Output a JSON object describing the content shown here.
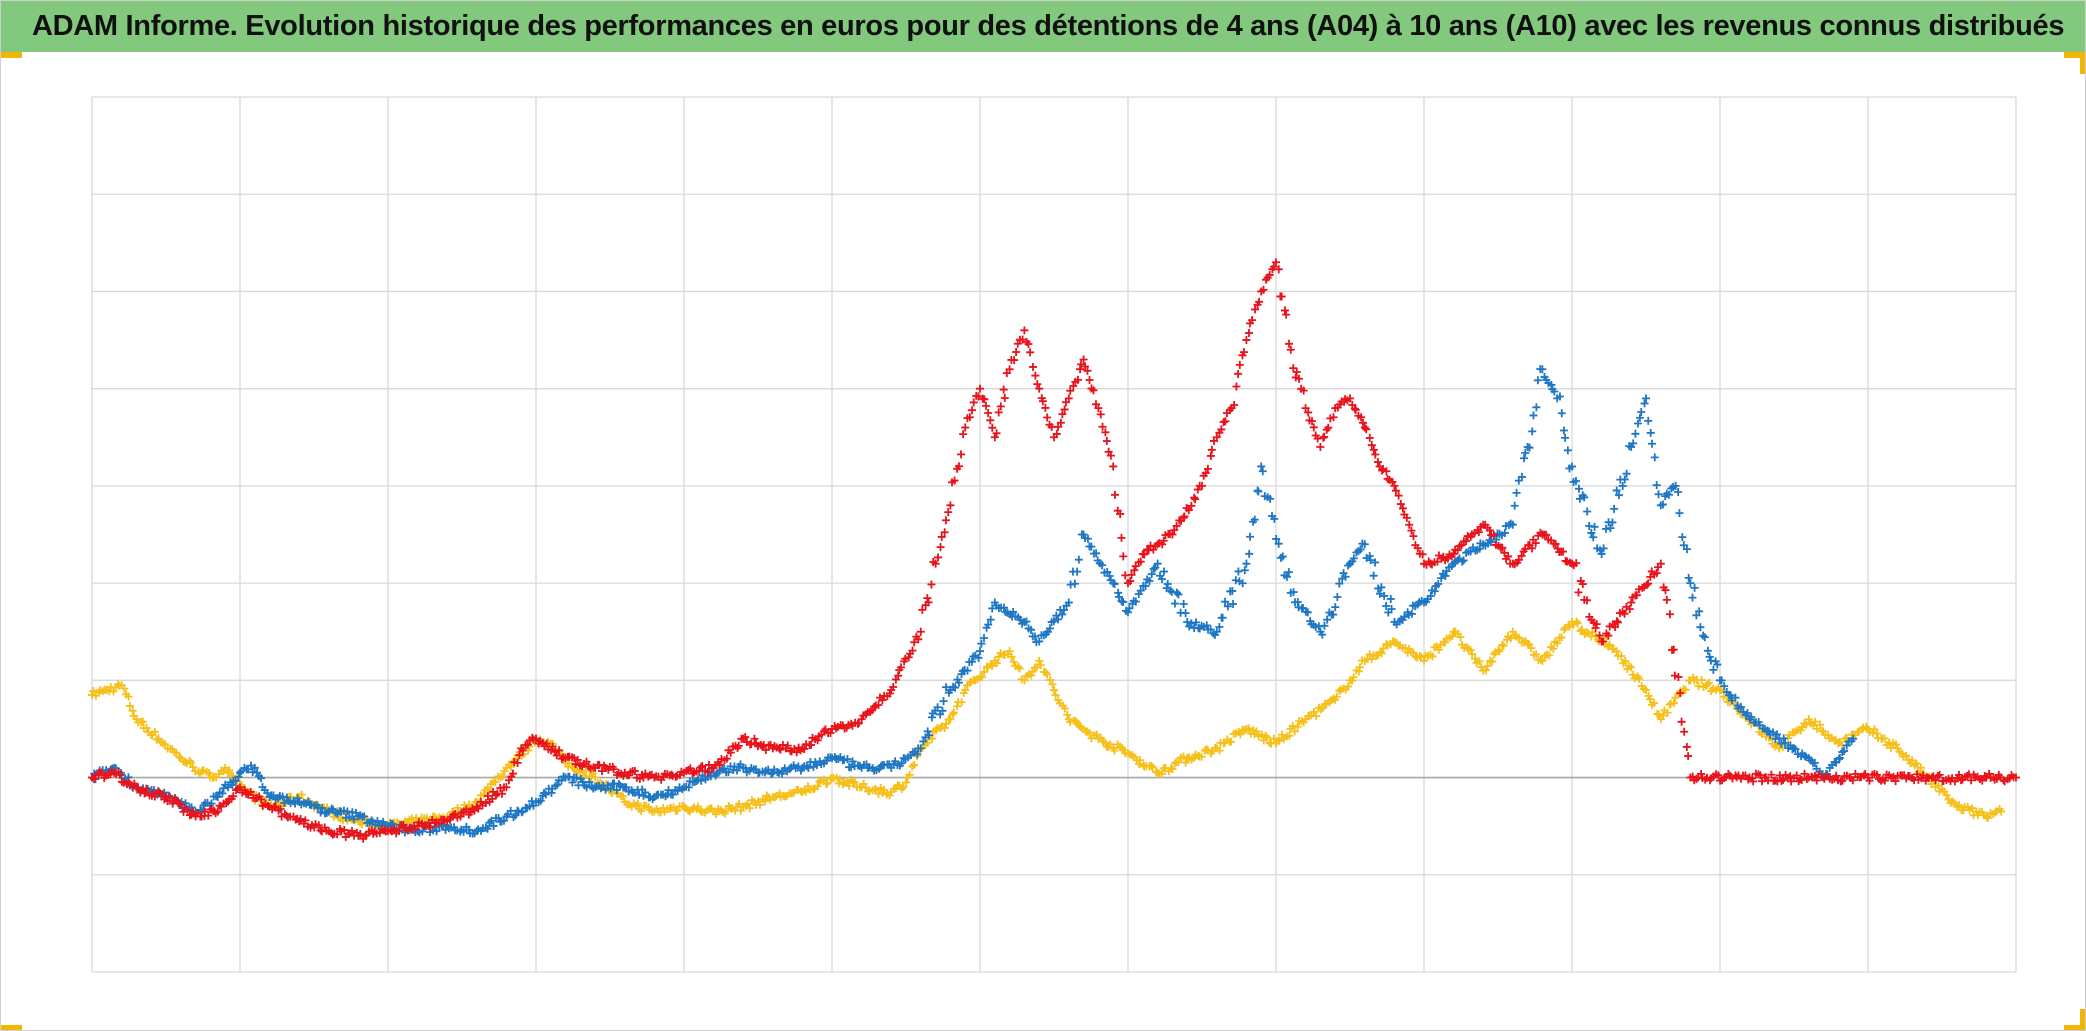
{
  "header": {
    "title": "ADAM Informe. Evolution historique des performances en euros pour des détentions de 4 ans (A04) à 10 ans (A10) avec les revenus connus distribués"
  },
  "colors": {
    "title_bg": "#82c97e",
    "accent_corners": "#f2b705",
    "series_red": "#e8131b",
    "series_blue": "#1f77c4",
    "series_yellow": "#f5c01a",
    "grid": "#d9d9d9",
    "zero_line": "#a6a6a6"
  },
  "chart_data": {
    "type": "scatter",
    "title": "ADAM Informe. Evolution historique des performances en euros pour des détentions de 4 ans (A04) à 10 ans (A10) avec les revenus connus distribués",
    "marker": "plus",
    "grid": true,
    "legend": "none",
    "axis_labels_visible": false,
    "x_range": [
      0,
      13
    ],
    "y_range": [
      -2,
      7
    ],
    "zero_line_y": 0,
    "series": [
      {
        "color": "#f5c01a",
        "points": [
          [
            0,
            0.85
          ],
          [
            0.1,
            0.9
          ],
          [
            0.2,
            0.95
          ],
          [
            0.3,
            0.6
          ],
          [
            0.45,
            0.4
          ],
          [
            0.6,
            0.2
          ],
          [
            0.8,
            0
          ],
          [
            0.9,
            0.1
          ],
          [
            1,
            -0.1
          ],
          [
            1.2,
            -0.3
          ],
          [
            1.4,
            -0.2
          ],
          [
            1.6,
            -0.35
          ],
          [
            1.8,
            -0.45
          ],
          [
            2,
            -0.5
          ],
          [
            2.2,
            -0.45
          ],
          [
            2.4,
            -0.4
          ],
          [
            2.6,
            -0.25
          ],
          [
            2.8,
            0.1
          ],
          [
            3,
            0.4
          ],
          [
            3.1,
            0.35
          ],
          [
            3.2,
            0.15
          ],
          [
            3.4,
            0
          ],
          [
            3.6,
            -0.25
          ],
          [
            3.8,
            -0.35
          ],
          [
            4,
            -0.3
          ],
          [
            4.2,
            -0.35
          ],
          [
            4.4,
            -0.3
          ],
          [
            4.6,
            -0.2
          ],
          [
            4.8,
            -0.15
          ],
          [
            5,
            0
          ],
          [
            5.2,
            -0.1
          ],
          [
            5.4,
            -0.15
          ],
          [
            5.5,
            -0.05
          ],
          [
            5.6,
            0.3
          ],
          [
            5.8,
            0.6
          ],
          [
            5.9,
            0.9
          ],
          [
            6.1,
            1.2
          ],
          [
            6.2,
            1.3
          ],
          [
            6.3,
            1.0
          ],
          [
            6.4,
            1.2
          ],
          [
            6.5,
            0.9
          ],
          [
            6.6,
            0.6
          ],
          [
            6.8,
            0.4
          ],
          [
            7,
            0.25
          ],
          [
            7.2,
            0.05
          ],
          [
            7.4,
            0.2
          ],
          [
            7.6,
            0.3
          ],
          [
            7.8,
            0.5
          ],
          [
            8.0,
            0.35
          ],
          [
            8.2,
            0.6
          ],
          [
            8.4,
            0.8
          ],
          [
            8.5,
            1.0
          ],
          [
            8.6,
            1.2
          ],
          [
            8.8,
            1.4
          ],
          [
            9.0,
            1.2
          ],
          [
            9.2,
            1.5
          ],
          [
            9.4,
            1.1
          ],
          [
            9.6,
            1.5
          ],
          [
            9.8,
            1.2
          ],
          [
            10,
            1.6
          ],
          [
            10.3,
            1.3
          ],
          [
            10.5,
            0.9
          ],
          [
            10.6,
            0.6
          ],
          [
            10.8,
            1.0
          ],
          [
            11,
            0.9
          ],
          [
            11.2,
            0.6
          ],
          [
            11.4,
            0.3
          ],
          [
            11.6,
            0.6
          ],
          [
            11.8,
            0.35
          ],
          [
            12,
            0.5
          ],
          [
            12.2,
            0.3
          ],
          [
            12.4,
            0.0
          ],
          [
            12.6,
            -0.3
          ],
          [
            12.8,
            -0.4
          ],
          [
            12.9,
            -0.35
          ]
        ]
      },
      {
        "color": "#1f77c4",
        "points": [
          [
            0,
            0
          ],
          [
            0.15,
            0.1
          ],
          [
            0.3,
            -0.1
          ],
          [
            0.5,
            -0.2
          ],
          [
            0.7,
            -0.35
          ],
          [
            0.85,
            -0.2
          ],
          [
            1,
            0.05
          ],
          [
            1.1,
            0.1
          ],
          [
            1.2,
            -0.2
          ],
          [
            1.4,
            -0.25
          ],
          [
            1.6,
            -0.35
          ],
          [
            1.8,
            -0.4
          ],
          [
            2,
            -0.5
          ],
          [
            2.2,
            -0.55
          ],
          [
            2.4,
            -0.5
          ],
          [
            2.6,
            -0.55
          ],
          [
            2.8,
            -0.4
          ],
          [
            3,
            -0.25
          ],
          [
            3.2,
            0
          ],
          [
            3.4,
            -0.1
          ],
          [
            3.6,
            -0.1
          ],
          [
            3.8,
            -0.2
          ],
          [
            4,
            -0.1
          ],
          [
            4.2,
            0.05
          ],
          [
            4.4,
            0.1
          ],
          [
            4.6,
            0.05
          ],
          [
            4.8,
            0.1
          ],
          [
            5,
            0.2
          ],
          [
            5.2,
            0.1
          ],
          [
            5.4,
            0.1
          ],
          [
            5.6,
            0.3
          ],
          [
            5.8,
            0.9
          ],
          [
            6,
            1.3
          ],
          [
            6.1,
            1.8
          ],
          [
            6.3,
            1.6
          ],
          [
            6.4,
            1.4
          ],
          [
            6.6,
            1.8
          ],
          [
            6.7,
            2.5
          ],
          [
            6.9,
            2.0
          ],
          [
            7.0,
            1.7
          ],
          [
            7.2,
            2.2
          ],
          [
            7.4,
            1.6
          ],
          [
            7.6,
            1.5
          ],
          [
            7.8,
            2.2
          ],
          [
            7.9,
            3.2
          ],
          [
            8.1,
            1.9
          ],
          [
            8.3,
            1.5
          ],
          [
            8.5,
            2.2
          ],
          [
            8.6,
            2.4
          ],
          [
            8.8,
            1.6
          ],
          [
            9.0,
            1.8
          ],
          [
            9.2,
            2.2
          ],
          [
            9.4,
            2.4
          ],
          [
            9.6,
            2.6
          ],
          [
            9.7,
            3.4
          ],
          [
            9.8,
            4.2
          ],
          [
            9.9,
            3.9
          ],
          [
            10.0,
            3.2
          ],
          [
            10.2,
            2.3
          ],
          [
            10.4,
            3.4
          ],
          [
            10.5,
            3.9
          ],
          [
            10.6,
            2.8
          ],
          [
            10.7,
            3.0
          ],
          [
            10.8,
            2.0
          ],
          [
            11.0,
            1.0
          ],
          [
            11.2,
            0.6
          ],
          [
            11.4,
            0.4
          ],
          [
            11.6,
            0.2
          ],
          [
            11.7,
            0.0
          ],
          [
            11.9,
            0.4
          ]
        ]
      },
      {
        "color": "#e8131b",
        "points": [
          [
            0,
            0
          ],
          [
            0.15,
            0.05
          ],
          [
            0.3,
            -0.1
          ],
          [
            0.5,
            -0.2
          ],
          [
            0.7,
            -0.4
          ],
          [
            0.85,
            -0.35
          ],
          [
            1,
            -0.1
          ],
          [
            1.2,
            -0.3
          ],
          [
            1.4,
            -0.45
          ],
          [
            1.6,
            -0.55
          ],
          [
            1.8,
            -0.6
          ],
          [
            2,
            -0.55
          ],
          [
            2.2,
            -0.5
          ],
          [
            2.4,
            -0.45
          ],
          [
            2.6,
            -0.3
          ],
          [
            2.8,
            -0.1
          ],
          [
            2.9,
            0.3
          ],
          [
            3.0,
            0.4
          ],
          [
            3.2,
            0.2
          ],
          [
            3.4,
            0.1
          ],
          [
            3.6,
            0.05
          ],
          [
            3.8,
            0.0
          ],
          [
            4,
            0.05
          ],
          [
            4.2,
            0.1
          ],
          [
            4.4,
            0.4
          ],
          [
            4.6,
            0.3
          ],
          [
            4.8,
            0.3
          ],
          [
            5,
            0.5
          ],
          [
            5.2,
            0.6
          ],
          [
            5.4,
            0.9
          ],
          [
            5.6,
            1.5
          ],
          [
            5.7,
            2.2
          ],
          [
            5.8,
            2.8
          ],
          [
            5.9,
            3.6
          ],
          [
            6.0,
            4.0
          ],
          [
            6.1,
            3.5
          ],
          [
            6.2,
            4.2
          ],
          [
            6.3,
            4.6
          ],
          [
            6.4,
            4.0
          ],
          [
            6.5,
            3.5
          ],
          [
            6.6,
            3.9
          ],
          [
            6.7,
            4.3
          ],
          [
            6.8,
            3.8
          ],
          [
            6.9,
            3.2
          ],
          [
            7.0,
            2.0
          ],
          [
            7.1,
            2.3
          ],
          [
            7.2,
            2.4
          ],
          [
            7.3,
            2.5
          ],
          [
            7.5,
            3.0
          ],
          [
            7.6,
            3.5
          ],
          [
            7.7,
            3.8
          ],
          [
            7.8,
            4.5
          ],
          [
            7.9,
            5.0
          ],
          [
            8.0,
            5.3
          ],
          [
            8.1,
            4.4
          ],
          [
            8.2,
            3.8
          ],
          [
            8.3,
            3.4
          ],
          [
            8.4,
            3.8
          ],
          [
            8.5,
            3.9
          ],
          [
            8.6,
            3.6
          ],
          [
            8.7,
            3.2
          ],
          [
            8.8,
            3.0
          ],
          [
            8.9,
            2.6
          ],
          [
            9.0,
            2.2
          ],
          [
            9.2,
            2.3
          ],
          [
            9.4,
            2.6
          ],
          [
            9.6,
            2.2
          ],
          [
            9.8,
            2.5
          ],
          [
            10.0,
            2.2
          ],
          [
            10.2,
            1.4
          ],
          [
            10.4,
            1.8
          ],
          [
            10.6,
            2.2
          ],
          [
            10.8,
            0
          ],
          [
            11.2,
            0
          ],
          [
            11.6,
            0
          ],
          [
            12.0,
            0
          ],
          [
            12.4,
            0
          ],
          [
            12.8,
            0
          ],
          [
            13.0,
            0
          ]
        ]
      }
    ]
  }
}
